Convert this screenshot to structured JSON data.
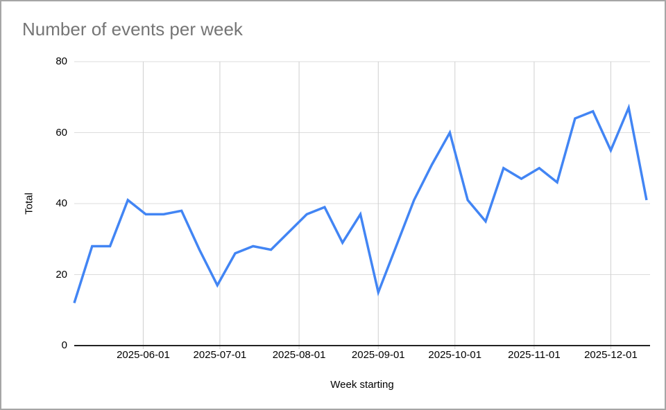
{
  "window": {
    "background_color": "#ffffff",
    "border_color": "#a6a6a6"
  },
  "chart_data": {
    "type": "line",
    "title": "Number of events per week",
    "xlabel": "Week starting",
    "ylabel": "Total",
    "x": [
      "2025-05-05",
      "2025-05-12",
      "2025-05-19",
      "2025-05-26",
      "2025-06-02",
      "2025-06-09",
      "2025-06-16",
      "2025-06-23",
      "2025-06-30",
      "2025-07-07",
      "2025-07-14",
      "2025-07-21",
      "2025-07-28",
      "2025-08-04",
      "2025-08-11",
      "2025-08-18",
      "2025-08-25",
      "2025-09-01",
      "2025-09-08",
      "2025-09-15",
      "2025-09-22",
      "2025-09-29",
      "2025-10-06",
      "2025-10-13",
      "2025-10-20",
      "2025-10-27",
      "2025-11-03",
      "2025-11-10",
      "2025-11-17",
      "2025-11-24",
      "2025-12-01",
      "2025-12-08",
      "2025-12-15"
    ],
    "values": [
      12,
      28,
      28,
      41,
      37,
      37,
      38,
      27,
      17,
      26,
      28,
      27,
      32,
      37,
      39,
      29,
      37,
      15,
      28,
      41,
      51,
      60,
      41,
      35,
      50,
      47,
      50,
      46,
      64,
      66,
      55,
      67,
      41
    ],
    "ylim": [
      0,
      80
    ],
    "yticks": [
      0,
      20,
      40,
      60,
      80
    ],
    "xticks": [
      "2025-06-01",
      "2025-07-01",
      "2025-08-01",
      "2025-09-01",
      "2025-10-01",
      "2025-11-01",
      "2025-12-01"
    ],
    "grid": true,
    "legend": "none",
    "line_color": "#4285f4",
    "title_color": "#757575",
    "tick_label_color": "#000000",
    "h_gridline_color": "#dcdcdc",
    "v_gridline_color": "#cfcfcf",
    "axis_line_color": "#222222"
  }
}
